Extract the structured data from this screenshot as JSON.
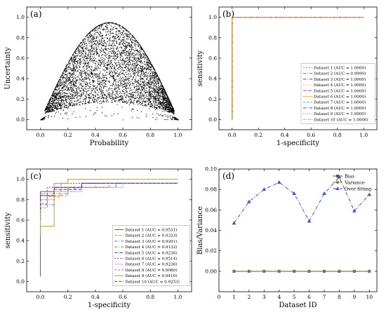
{
  "chart_data": [
    {
      "panel": "(a)",
      "type": "scatter",
      "xlabel": "Probability",
      "ylabel": "Uncertainty",
      "xlim": [
        -0.1,
        1.1
      ],
      "ylim": [
        -0.1,
        1.1
      ],
      "xticks": [
        "0.0",
        "0.2",
        "0.4",
        "0.6",
        "0.8",
        "1.0"
      ],
      "yticks": [
        "0.0",
        "0.2",
        "0.4",
        "0.6",
        "0.8",
        "1.0"
      ],
      "grid": false,
      "points_hint": "dense black point cloud forming an arch from (0,0) to (1,0) peaking near y≈0.7-0.95 around x≈0.4-0.65"
    },
    {
      "panel": "(b)",
      "type": "line",
      "xlabel": "1-specificity",
      "ylabel": "sensitivity",
      "xlim": [
        -0.1,
        1.1
      ],
      "ylim": [
        -0.1,
        1.1
      ],
      "xticks": [
        "0.0",
        "0.2",
        "0.4",
        "0.6",
        "0.8",
        "1.0"
      ],
      "yticks": [
        "0.0",
        "0.2",
        "0.4",
        "0.6",
        "0.8",
        "1.0"
      ],
      "legend_position": "right",
      "series": [
        {
          "name": "Dataset 1 (AUC = 1.0000)",
          "color": "#4caf50",
          "dash": "2,2",
          "x": [
            0,
            0,
            1
          ],
          "y": [
            0,
            1,
            1
          ]
        },
        {
          "name": "Dataset 2 (AUC = 0.9999)",
          "color": "#e53935",
          "dash": "4,2,1,2",
          "x": [
            0,
            0,
            0.01,
            1
          ],
          "y": [
            0,
            0.99,
            1,
            1
          ]
        },
        {
          "name": "Dataset 3 (AUC = 1.0000)",
          "color": "#1e40d8",
          "dash": "4,2,1,2",
          "x": [
            0,
            0,
            1
          ],
          "y": [
            0,
            1,
            1
          ]
        },
        {
          "name": "Dataset 4 (AUC = 1.0000)",
          "color": "#c7b300",
          "dash": "1,2",
          "x": [
            0,
            0,
            1
          ],
          "y": [
            0,
            1,
            1
          ]
        },
        {
          "name": "Dataset 5 (AUC = 1.0000)",
          "color": "#d9409a",
          "dash": "5,2",
          "x": [
            0,
            0,
            1
          ],
          "y": [
            0,
            1,
            1
          ]
        },
        {
          "name": "Dataset 6 (AUC = 1.0000)",
          "color": "#e07b2c",
          "dash": "1,1",
          "x": [
            0,
            0,
            1
          ],
          "y": [
            0,
            1,
            1
          ]
        },
        {
          "name": "Dataset 7 (AUC = 1.0000)",
          "color": "#3fb6c8",
          "dash": "3,2",
          "x": [
            0,
            0,
            1
          ],
          "y": [
            0,
            1,
            1
          ]
        },
        {
          "name": "Dataset 8 (AUC = 1.0000)",
          "color": "#5a2ea6",
          "dash": "4,2,1,2",
          "x": [
            0,
            0,
            1
          ],
          "y": [
            0,
            1,
            1
          ]
        },
        {
          "name": "Dataset 9 (AUC = 1.0000)",
          "color": "#6a8f1a",
          "dash": "1,2",
          "x": [
            0,
            0,
            1
          ],
          "y": [
            0,
            1,
            1
          ]
        },
        {
          "name": "Dataset 10 (AUC = 1.0000)",
          "color": "#f0a030",
          "dash": "4,1,1,1",
          "x": [
            0,
            0,
            1
          ],
          "y": [
            0,
            1,
            1
          ]
        }
      ]
    },
    {
      "panel": "(c)",
      "type": "line",
      "xlabel": "1-specificity",
      "ylabel": "sensitivity",
      "xlim": [
        -0.1,
        1.1
      ],
      "ylim": [
        -0.1,
        1.1
      ],
      "xticks": [
        "0.0",
        "0.2",
        "0.4",
        "0.6",
        "0.8",
        "1.0"
      ],
      "yticks": [
        "0.0",
        "0.2",
        "0.4",
        "0.6",
        "0.8",
        "1.0"
      ],
      "legend_position": "right",
      "series": [
        {
          "name": "Dataset 1 (AUC = 0.9531)",
          "color": "#c0392b",
          "dash": "",
          "x": [
            0,
            0,
            0.1,
            0.1,
            0.3,
            0.3,
            1
          ],
          "y": [
            0.05,
            0.88,
            0.88,
            0.92,
            0.92,
            0.96,
            0.96
          ]
        },
        {
          "name": "Dataset 2 (AUC = 0.9323)",
          "color": "#e08a30",
          "dash": "4,2",
          "x": [
            0,
            0,
            0.05,
            0.05,
            0.15,
            0.15,
            0.4,
            0.4,
            1
          ],
          "y": [
            0.46,
            0.72,
            0.72,
            0.83,
            0.83,
            0.92,
            0.92,
            0.96,
            0.96
          ]
        },
        {
          "name": "Dataset 3 (AUC = 0.9201)",
          "color": "#4a7ad8",
          "dash": "4,2,1,2",
          "x": [
            0,
            0,
            0.1,
            0.1,
            0.25,
            0.25,
            0.55,
            0.55,
            1
          ],
          "y": [
            0.55,
            0.75,
            0.75,
            0.88,
            0.88,
            0.92,
            0.92,
            0.96,
            0.96
          ]
        },
        {
          "name": "Dataset 4 (AUC = 0.9132)",
          "color": "#3cae3c",
          "dash": "4,2,1,2",
          "x": [
            0,
            0,
            0.05,
            0.05,
            0.2,
            0.2,
            0.5,
            0.5,
            1
          ],
          "y": [
            0.6,
            0.8,
            0.8,
            0.86,
            0.86,
            0.92,
            0.92,
            0.96,
            0.96
          ]
        },
        {
          "name": "Dataset 5 (AUC = 0.9236)",
          "color": "#2e3ec8",
          "dash": "5,2",
          "x": [
            0,
            0,
            0.1,
            0.1,
            0.3,
            0.3,
            1
          ],
          "y": [
            0.55,
            0.84,
            0.84,
            0.9,
            0.9,
            0.96,
            0.96
          ]
        },
        {
          "name": "Dataset 6 (AUC = 0.9514)",
          "color": "#7b3ea8",
          "dash": "2,2",
          "x": [
            0,
            0,
            0.05,
            0.05,
            0.15,
            0.15,
            1
          ],
          "y": [
            0.62,
            0.86,
            0.86,
            0.92,
            0.92,
            0.96,
            0.96
          ]
        },
        {
          "name": "Dataset 7 (AUC = 0.9236)",
          "color": "#e8a0d0",
          "dash": "",
          "x": [
            0,
            0,
            0.1,
            0.1,
            0.3,
            0.3,
            0.6,
            0.6,
            1
          ],
          "y": [
            0.5,
            0.8,
            0.8,
            0.88,
            0.88,
            0.92,
            0.92,
            0.96,
            0.96
          ]
        },
        {
          "name": "Dataset 8 (AUC = 0.9080)",
          "color": "#e06060",
          "dash": "3,2",
          "x": [
            0,
            0,
            0.05,
            0.05,
            0.2,
            0.2,
            0.5,
            0.5,
            1
          ],
          "y": [
            0.6,
            0.76,
            0.76,
            0.84,
            0.84,
            0.92,
            0.92,
            0.96,
            0.96
          ]
        },
        {
          "name": "Dataset 9 (AUC = 0.9410)",
          "color": "#c8a000",
          "dash": "",
          "x": [
            0,
            0,
            0.1,
            0.1,
            0.2,
            0.2,
            0.5,
            0.5,
            1
          ],
          "y": [
            0.45,
            0.54,
            0.54,
            0.96,
            0.96,
            1,
            1,
            1,
            1
          ]
        },
        {
          "name": "Dataset 10 (AUC = 0.9253)",
          "color": "#3a3ad8",
          "dash": "4,2",
          "x": [
            0,
            0,
            0.1,
            0.1,
            0.3,
            0.3,
            1
          ],
          "y": [
            0.7,
            0.84,
            0.84,
            0.92,
            0.92,
            0.96,
            0.96
          ]
        }
      ]
    },
    {
      "panel": "(d)",
      "type": "line",
      "xlabel": "Dataset ID",
      "ylabel": "Bias/Variance",
      "xlim": [
        0,
        10.5
      ],
      "ylim": [
        -0.02,
        0.1
      ],
      "xticks": [
        "0",
        "1",
        "2",
        "3",
        "4",
        "5",
        "6",
        "7",
        "8",
        "9",
        "10"
      ],
      "yticks": [
        "0.00",
        "0.02",
        "0.04",
        "0.06",
        "0.08",
        "0.10"
      ],
      "legend_position": "top-right",
      "categories": [
        1,
        2,
        3,
        4,
        5,
        6,
        7,
        8,
        9,
        10
      ],
      "series": [
        {
          "name": "Bias",
          "color": "#555555",
          "marker": "square",
          "dash": "",
          "values": [
            0,
            0,
            0,
            0,
            0,
            0,
            0,
            0,
            0,
            0
          ]
        },
        {
          "name": "Variance",
          "color": "#8a7a2a",
          "marker": "circle",
          "dash": "",
          "values": [
            0,
            0,
            0,
            0,
            0,
            0,
            0,
            0,
            0,
            0
          ]
        },
        {
          "name": "Over-fitting",
          "color": "#3a56c8",
          "marker": "triangle",
          "dash": "5,2,1,2",
          "values": [
            0.047,
            0.068,
            0.08,
            0.087,
            0.076,
            0.049,
            0.076,
            0.092,
            0.059,
            0.075
          ]
        }
      ]
    }
  ]
}
